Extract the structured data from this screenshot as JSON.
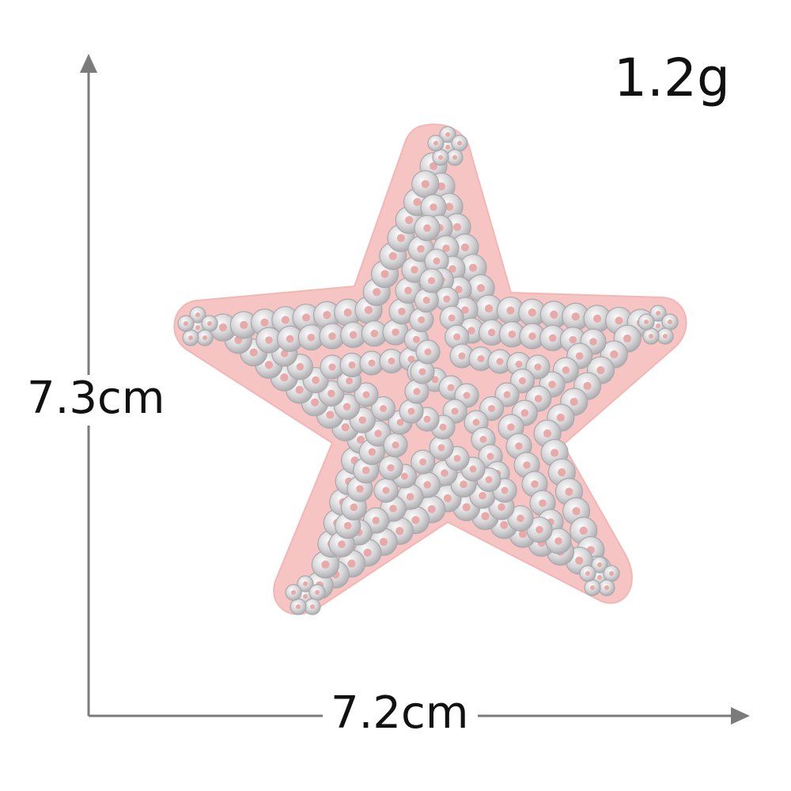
{
  "product": {
    "name_icon": "sequin-star-patch",
    "weight_label": "1.2g",
    "height_label": "7.3cm",
    "width_label": "7.2cm"
  },
  "colors": {
    "background": "#ffffff",
    "felt": "#f6c4c2",
    "felt_edge": "#f2b7b4",
    "sequin": "#d9d9db",
    "sequin_highlight": "#f4f4f6",
    "sequin_shadow": "#a9a9ad",
    "sequin_hole": "#e8a9a9",
    "arrow": "#7b7b7b",
    "text": "#111111"
  }
}
